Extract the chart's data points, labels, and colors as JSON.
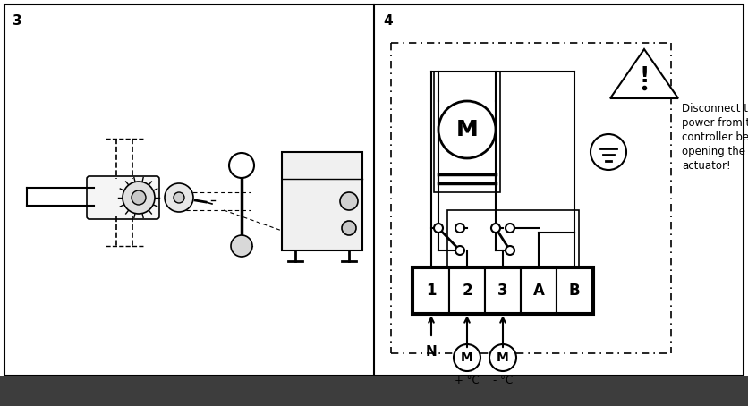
{
  "bg_color": "#ffffff",
  "line_color": "#000000",
  "fill_color": "#ffffff",
  "panel3_label": "3",
  "panel4_label": "4",
  "warning_text": [
    "Disconnect the",
    "power from the",
    "controller before",
    "opening the",
    "actuator!"
  ],
  "terminal_labels": [
    "1",
    "2",
    "3",
    "A",
    "B"
  ],
  "bottom_bar_color": "#3d3d3d"
}
